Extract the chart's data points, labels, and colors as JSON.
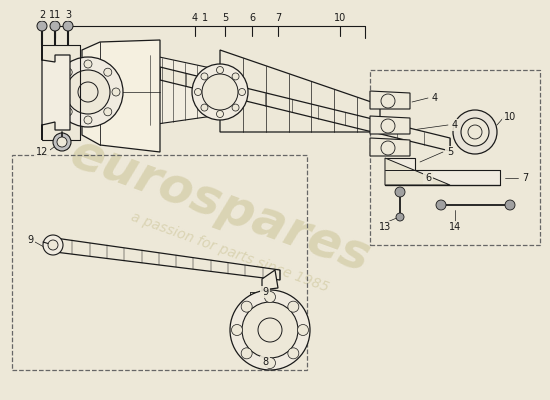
{
  "bg_color": "#ede8d8",
  "line_color": "#1a1a1a",
  "watermark1": "eurospares",
  "watermark2": "a passion for parts since 1985",
  "wm_color": "#c8c090",
  "fig_w": 5.5,
  "fig_h": 4.0,
  "dpi": 100
}
